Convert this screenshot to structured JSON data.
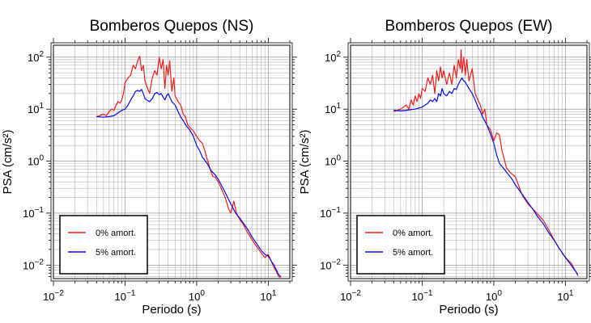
{
  "chart_data": [
    {
      "type": "line",
      "title": "Bomberos Quepos (NS)",
      "xlabel": "Periodo (s)",
      "ylabel": "PSA (cm/s²)",
      "x_scale": "log",
      "y_scale": "log",
      "xlim": [
        0.01,
        20
      ],
      "ylim": [
        0.0055,
        170
      ],
      "x_ticks": [
        {
          "base": "10",
          "exp": "−2"
        },
        {
          "base": "10",
          "exp": "−1"
        },
        {
          "base": "10",
          "exp": "0"
        },
        {
          "base": "10",
          "exp": "1"
        }
      ],
      "y_ticks": [
        {
          "base": "10",
          "exp": "−2"
        },
        {
          "base": "10",
          "exp": "−1"
        },
        {
          "base": "10",
          "exp": "0"
        },
        {
          "base": "10",
          "exp": "1"
        },
        {
          "base": "10",
          "exp": "2"
        }
      ],
      "grid": true,
      "legend_position": "bottom-left",
      "series": [
        {
          "name": "0% amort.",
          "color": "#ee1c1c",
          "x": [
            0.04,
            0.05,
            0.055,
            0.06,
            0.065,
            0.07,
            0.075,
            0.08,
            0.085,
            0.09,
            0.095,
            0.1,
            0.11,
            0.12,
            0.13,
            0.14,
            0.15,
            0.16,
            0.17,
            0.18,
            0.19,
            0.2,
            0.22,
            0.24,
            0.26,
            0.28,
            0.3,
            0.32,
            0.34,
            0.36,
            0.38,
            0.4,
            0.42,
            0.45,
            0.48,
            0.5,
            0.55,
            0.6,
            0.65,
            0.7,
            0.75,
            0.8,
            0.9,
            1.0,
            1.1,
            1.2,
            1.3,
            1.4,
            1.5,
            1.6,
            1.7,
            1.8,
            2.0,
            2.2,
            2.5,
            2.8,
            3.0,
            3.3,
            3.6,
            4.0,
            4.5,
            5.0,
            6.0,
            7.0,
            8.0,
            9.0,
            10.0,
            11.0,
            12.0,
            13.0,
            14.0,
            15.0
          ],
          "y": [
            7.2,
            8,
            7.5,
            9,
            10,
            9.5,
            12,
            14,
            13,
            15,
            20,
            32,
            40,
            45,
            70,
            60,
            85,
            105,
            55,
            70,
            35,
            28,
            20,
            40,
            55,
            45,
            100,
            60,
            90,
            25,
            70,
            45,
            85,
            22,
            40,
            18,
            14,
            12,
            8,
            7,
            5,
            4.5,
            3.8,
            3,
            2.5,
            2.2,
            1.6,
            1.1,
            0.8,
            0.6,
            0.5,
            0.5,
            0.4,
            0.3,
            0.2,
            0.12,
            0.1,
            0.17,
            0.1,
            0.075,
            0.06,
            0.045,
            0.03,
            0.022,
            0.017,
            0.014,
            0.016,
            0.012,
            0.009,
            0.0075,
            0.006,
            0.0058
          ]
        },
        {
          "name": "5% amort.",
          "color": "#0a0aee",
          "x": [
            0.04,
            0.05,
            0.06,
            0.07,
            0.08,
            0.09,
            0.1,
            0.11,
            0.12,
            0.13,
            0.14,
            0.15,
            0.16,
            0.17,
            0.18,
            0.19,
            0.2,
            0.22,
            0.24,
            0.26,
            0.28,
            0.3,
            0.32,
            0.34,
            0.36,
            0.38,
            0.4,
            0.45,
            0.5,
            0.55,
            0.6,
            0.65,
            0.7,
            0.8,
            0.9,
            1.0,
            1.1,
            1.2,
            1.4,
            1.6,
            1.8,
            2.0,
            2.5,
            3.0,
            3.5,
            4.0,
            5.0,
            6.0,
            7.0,
            8.0,
            9.0,
            10.0,
            11.0,
            12.0,
            14.0,
            15.0
          ],
          "y": [
            7.2,
            7,
            7.2,
            7.5,
            8.5,
            9.5,
            10,
            12,
            15,
            18,
            22,
            23,
            22,
            24,
            20,
            16,
            15,
            14,
            16,
            20,
            21,
            19,
            20,
            17,
            15,
            18,
            20,
            14,
            12,
            9,
            7,
            6,
            5,
            4,
            3,
            2,
            1.6,
            1.2,
            0.9,
            0.65,
            0.55,
            0.45,
            0.25,
            0.15,
            0.1,
            0.08,
            0.052,
            0.034,
            0.025,
            0.019,
            0.016,
            0.015,
            0.012,
            0.01,
            0.0065,
            0.006
          ]
        }
      ]
    },
    {
      "type": "line",
      "title": "Bomberos Quepos (EW)",
      "xlabel": "Periodo (s)",
      "ylabel": "PSA (cm/s²)",
      "x_scale": "log",
      "y_scale": "log",
      "xlim": [
        0.01,
        20
      ],
      "ylim": [
        0.0055,
        170
      ],
      "x_ticks": [
        {
          "base": "10",
          "exp": "−2"
        },
        {
          "base": "10",
          "exp": "−1"
        },
        {
          "base": "10",
          "exp": "0"
        },
        {
          "base": "10",
          "exp": "1"
        }
      ],
      "y_ticks": [
        {
          "base": "10",
          "exp": "−2"
        },
        {
          "base": "10",
          "exp": "−1"
        },
        {
          "base": "10",
          "exp": "0"
        },
        {
          "base": "10",
          "exp": "1"
        },
        {
          "base": "10",
          "exp": "2"
        }
      ],
      "grid": true,
      "legend_position": "bottom-left",
      "series": [
        {
          "name": "0% amort.",
          "color": "#ee1c1c",
          "x": [
            0.04,
            0.05,
            0.06,
            0.065,
            0.07,
            0.075,
            0.08,
            0.085,
            0.09,
            0.095,
            0.1,
            0.11,
            0.12,
            0.13,
            0.14,
            0.15,
            0.16,
            0.17,
            0.18,
            0.19,
            0.2,
            0.22,
            0.24,
            0.26,
            0.28,
            0.3,
            0.32,
            0.34,
            0.35,
            0.36,
            0.38,
            0.4,
            0.42,
            0.45,
            0.5,
            0.55,
            0.6,
            0.65,
            0.7,
            0.75,
            0.8,
            0.9,
            1.0,
            1.1,
            1.2,
            1.3,
            1.4,
            1.5,
            1.7,
            2.0,
            2.5,
            3.0,
            3.5,
            4.0,
            5.0,
            6.0,
            7.0,
            8.0,
            10.0,
            12.0,
            14.0,
            15.0
          ],
          "y": [
            9,
            10,
            12,
            10,
            15,
            12,
            18,
            14,
            20,
            16,
            25,
            22,
            40,
            30,
            45,
            20,
            55,
            35,
            65,
            40,
            55,
            30,
            50,
            30,
            70,
            40,
            90,
            60,
            140,
            50,
            100,
            45,
            90,
            35,
            60,
            20,
            15,
            12,
            8,
            10,
            5,
            4,
            2.5,
            3.5,
            3.2,
            1.6,
            1.1,
            0.75,
            0.6,
            0.5,
            0.22,
            0.15,
            0.12,
            0.1,
            0.07,
            0.045,
            0.03,
            0.022,
            0.014,
            0.011,
            0.0075,
            0.0062
          ]
        },
        {
          "name": "5% amort.",
          "color": "#0a0aee",
          "x": [
            0.04,
            0.05,
            0.06,
            0.07,
            0.08,
            0.09,
            0.1,
            0.11,
            0.12,
            0.13,
            0.14,
            0.15,
            0.16,
            0.17,
            0.18,
            0.19,
            0.2,
            0.22,
            0.24,
            0.26,
            0.28,
            0.3,
            0.32,
            0.34,
            0.36,
            0.38,
            0.4,
            0.45,
            0.5,
            0.55,
            0.6,
            0.65,
            0.7,
            0.8,
            0.9,
            1.0,
            1.1,
            1.2,
            1.4,
            1.6,
            1.8,
            2.0,
            2.5,
            3.0,
            3.5,
            4.0,
            5.0,
            6.0,
            7.0,
            8.0,
            10.0,
            12.0,
            14.0,
            15.0
          ],
          "y": [
            9.5,
            9.3,
            9.5,
            9.8,
            10,
            10.5,
            11,
            12,
            13,
            15,
            14,
            16,
            14,
            20,
            18,
            25,
            20,
            18,
            22,
            20,
            25,
            24,
            30,
            35,
            40,
            35,
            33,
            25,
            20,
            15,
            11,
            9,
            7,
            5,
            3.3,
            2.2,
            1.3,
            0.9,
            0.7,
            0.55,
            0.45,
            0.35,
            0.23,
            0.16,
            0.12,
            0.09,
            0.06,
            0.04,
            0.03,
            0.022,
            0.014,
            0.01,
            0.0075,
            0.0065
          ]
        }
      ]
    }
  ]
}
